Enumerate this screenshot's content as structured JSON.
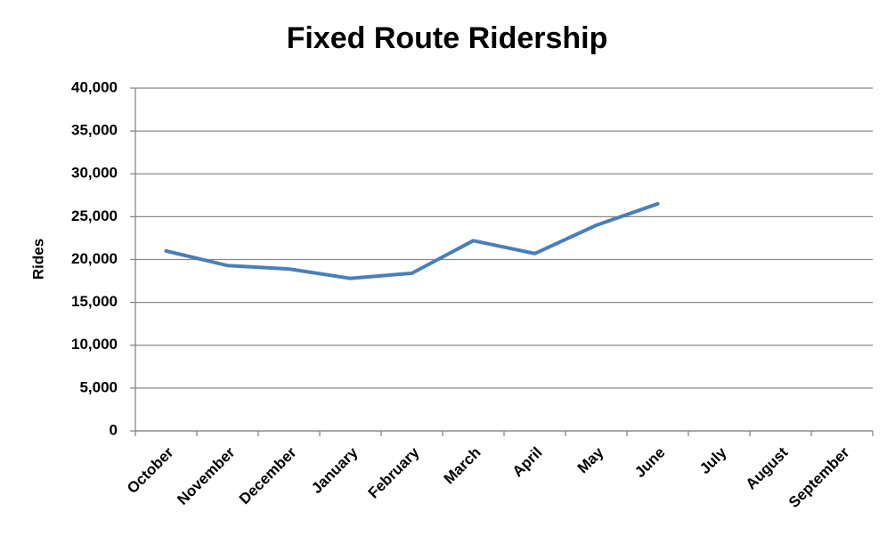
{
  "chart_data": {
    "type": "line",
    "title": "Fixed Route Ridership",
    "y_label": "Rides",
    "categories": [
      "October",
      "November",
      "December",
      "January",
      "February",
      "March",
      "April",
      "May",
      "June",
      "July",
      "August",
      "September"
    ],
    "values": [
      21000,
      19300,
      18900,
      17800,
      18400,
      22200,
      20700,
      24000,
      26500,
      null,
      null,
      null
    ],
    "color": "#4a7ebb",
    "ylim": [
      0,
      40000
    ],
    "yticks": [
      0,
      {
        "value": 5000,
        "label": "5,000"
      },
      {
        "value": 10000,
        "label": "10,000"
      },
      {
        "value": 15000,
        "label": "15,000"
      },
      {
        "value": 20000,
        "label": "20,000"
      },
      {
        "value": 25000,
        "label": "25,000"
      },
      {
        "value": 30000,
        "label": "30,000"
      },
      {
        "value": 35000,
        "label": "35,000"
      },
      {
        "value": 40000,
        "label": "40,000"
      }
    ],
    "grid": true
  }
}
